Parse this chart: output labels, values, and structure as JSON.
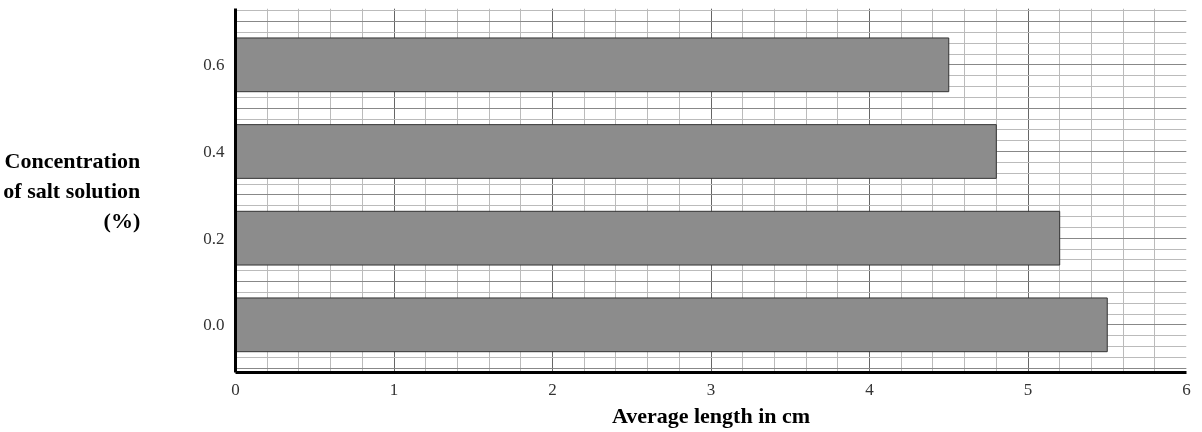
{
  "chart_data": {
    "type": "bar",
    "orientation": "horizontal",
    "categories": [
      "0.6",
      "0.4",
      "0.2",
      "0.0"
    ],
    "values": [
      4.5,
      4.8,
      5.2,
      5.5
    ],
    "color": "#8c8c8c",
    "xlim": [
      0,
      6
    ],
    "xticks": [
      0,
      1,
      2,
      3,
      4,
      5,
      6
    ],
    "grid": true,
    "xlabel": "Average length in cm",
    "ylabel": "Concentration\nof salt solution\n(%)"
  }
}
